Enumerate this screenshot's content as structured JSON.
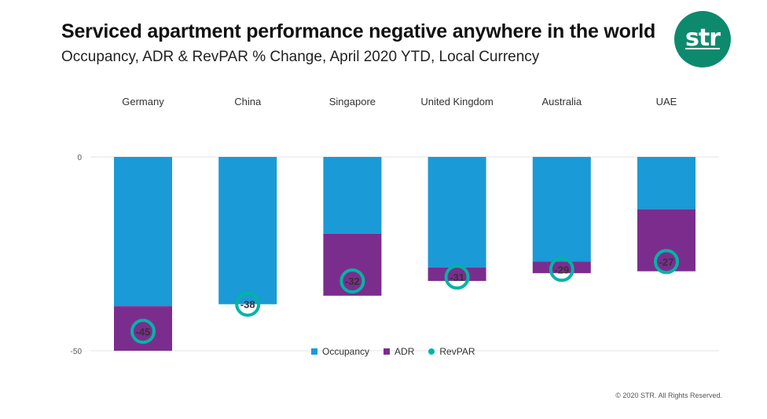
{
  "header": {
    "title": "Serviced apartment performance negative anywhere in the world",
    "subtitle": "Occupancy, ADR & RevPAR % Change, April 2020 YTD, Local Currency"
  },
  "logo": {
    "text": "str"
  },
  "footer": {
    "copyright": "© 2020 STR. All Rights Reserved."
  },
  "colors": {
    "occupancy": "#1a9ad6",
    "adr": "#7b2d8e",
    "revpar": "#00b5a5",
    "brand": "#0d8a6e"
  },
  "chart_data": {
    "type": "bar",
    "title": "Serviced apartment performance negative anywhere in the world",
    "subtitle": "Occupancy, ADR & RevPAR % Change, April 2020 YTD, Local Currency",
    "categories": [
      "Germany",
      "China",
      "Singapore",
      "United Kingdom",
      "Australia",
      "UAE"
    ],
    "stacked": true,
    "series": [
      {
        "name": "Occupancy",
        "kind": "bar",
        "values": [
          -38.5,
          -38,
          -19.8,
          -28.5,
          -27,
          -13.5
        ]
      },
      {
        "name": "ADR",
        "kind": "bar",
        "values": [
          -11.5,
          0,
          -16,
          -3.5,
          -3,
          -16
        ]
      },
      {
        "name": "RevPAR",
        "kind": "marker",
        "values": [
          -45,
          -38,
          -32,
          -31,
          -29,
          -27
        ]
      }
    ],
    "yticks": [
      0,
      -50
    ],
    "ylim": [
      -50,
      0
    ],
    "legend": [
      "Occupancy",
      "ADR",
      "RevPAR"
    ],
    "legend_position": "bottom-center"
  }
}
